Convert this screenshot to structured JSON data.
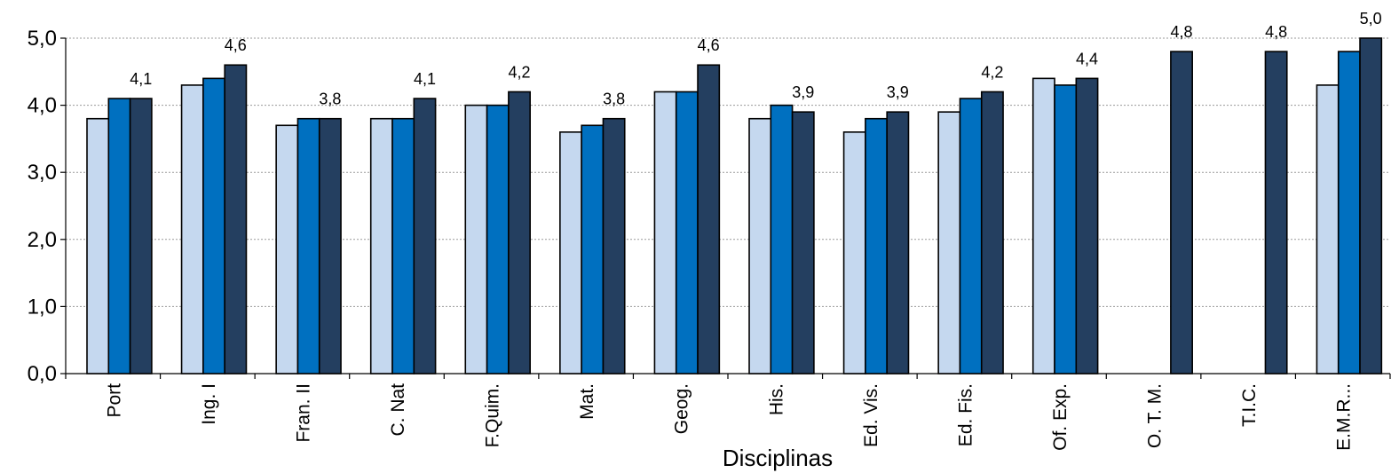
{
  "chart_data": {
    "type": "bar",
    "xlabel": "Disciplinas",
    "ylabel": "",
    "ylim": [
      0,
      5
    ],
    "yticks": [
      "0,0",
      "1,0",
      "2,0",
      "3,0",
      "4,0",
      "5,0"
    ],
    "grid": true,
    "categories": [
      "Port",
      "Ing. I",
      "Fran. II",
      "C. Nat",
      "F.Quim.",
      "Mat.",
      "Geog.",
      "His.",
      "Ed. Vis.",
      "Ed. Fis.",
      "Of. Exp.",
      "O. T. M.",
      "T.I.C.",
      "E.M.R..."
    ],
    "series": [
      {
        "color": "#c5d8ef",
        "values": [
          3.8,
          4.3,
          3.7,
          3.8,
          4.0,
          3.6,
          4.2,
          3.8,
          3.6,
          3.9,
          4.4,
          null,
          null,
          4.3
        ]
      },
      {
        "color": "#0070c0",
        "values": [
          4.1,
          4.4,
          3.8,
          3.8,
          4.0,
          3.7,
          4.2,
          4.0,
          3.8,
          4.1,
          4.3,
          null,
          null,
          4.8
        ]
      },
      {
        "color": "#243f60",
        "values": [
          4.1,
          4.6,
          3.8,
          4.1,
          4.2,
          3.8,
          4.6,
          3.9,
          3.9,
          4.2,
          4.4,
          4.8,
          4.8,
          5.0
        ]
      }
    ],
    "data_labels": [
      "4,1",
      "4,6",
      "3,8",
      "4,1",
      "4,2",
      "3,8",
      "4,6",
      "3,9",
      "3,9",
      "4,2",
      "4,4",
      "4,8",
      "4,8",
      "5,0"
    ]
  }
}
